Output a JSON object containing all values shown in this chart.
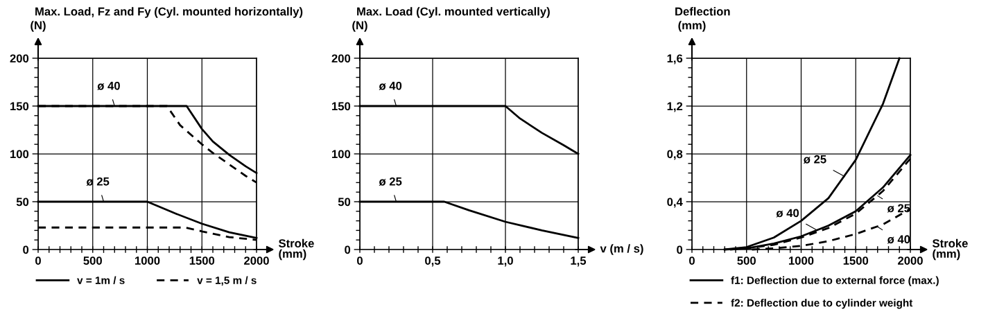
{
  "chart_data": [
    {
      "type": "line",
      "title": "Max. Load, Fz and Fy (Cyl. mounted horizontally)",
      "ylabel": "(N)",
      "xlabel": "Stroke\n(mm)",
      "xlim": [
        0,
        2000
      ],
      "ylim": [
        0,
        200
      ],
      "xticks": [
        0,
        {
          "value": 100,
          "label": null
        },
        {
          "value": 200,
          "label": null
        },
        {
          "value": 300,
          "label": null
        },
        {
          "value": 400,
          "label": null
        },
        500,
        {
          "value": 600,
          "label": null
        },
        {
          "value": 700,
          "label": null
        },
        {
          "value": 800,
          "label": null
        },
        {
          "value": 900,
          "label": null
        },
        1000,
        {
          "value": 1100,
          "label": null
        },
        {
          "value": 1200,
          "label": null
        },
        {
          "value": 1300,
          "label": null
        },
        {
          "value": 1400,
          "label": null
        },
        1500,
        {
          "value": 1600,
          "label": null
        },
        {
          "value": 1700,
          "label": null
        },
        {
          "value": 1800,
          "label": null
        },
        {
          "value": 1900,
          "label": null
        },
        2000
      ],
      "yticks": [
        0,
        {
          "value": 10,
          "label": null
        },
        {
          "value": 20,
          "label": null
        },
        {
          "value": 30,
          "label": null
        },
        {
          "value": 40,
          "label": null
        },
        50,
        {
          "value": 60,
          "label": null
        },
        {
          "value": 70,
          "label": null
        },
        {
          "value": 80,
          "label": null
        },
        {
          "value": 90,
          "label": null
        },
        100,
        {
          "value": 110,
          "label": null
        },
        {
          "value": 120,
          "label": null
        },
        {
          "value": 130,
          "label": null
        },
        {
          "value": 140,
          "label": null
        },
        150,
        {
          "value": 160,
          "label": null
        },
        {
          "value": 170,
          "label": null
        },
        {
          "value": 180,
          "label": null
        },
        {
          "value": 190,
          "label": null
        },
        200
      ],
      "grid": true,
      "legend": "bottom",
      "series": [
        {
          "name": "v = 1m / s",
          "color": "#000000",
          "line_style": "solid",
          "x": [
            0,
            1360,
            1500,
            1600,
            1750,
            1900,
            2000
          ],
          "values": [
            150,
            150,
            126,
            113,
            99,
            87,
            80
          ]
        },
        {
          "name": "v = 1,5 m / s",
          "color": "#000000",
          "line_style": "dashed",
          "x": [
            0,
            1180,
            1300,
            1500,
            1600,
            1750,
            1900,
            2000
          ],
          "values": [
            150,
            150,
            130,
            110,
            101,
            89,
            77,
            70
          ]
        },
        {
          "color": "#000000",
          "line_style": "solid",
          "x": [
            0,
            1000,
            1250,
            1500,
            1750,
            2000
          ],
          "values": [
            50,
            50,
            38,
            27,
            18,
            12
          ]
        },
        {
          "color": "#000000",
          "line_style": "dashed",
          "x": [
            0,
            1350,
            1500,
            1750,
            2000
          ],
          "values": [
            23,
            23,
            19,
            13,
            10
          ]
        }
      ],
      "annotations": [
        {
          "text": "ø 40",
          "x": 700,
          "y": 150
        },
        {
          "text": "ø 25",
          "x": 600,
          "y": 50
        }
      ]
    },
    {
      "type": "line",
      "title": "Max. Load (Cyl. mounted vertically)",
      "ylabel": "(N)",
      "xlabel": "v (m / s)",
      "xlim": [
        0,
        1.5
      ],
      "ylim": [
        0,
        200
      ],
      "xticks": [
        0,
        {
          "value": 0.1,
          "label": null
        },
        {
          "value": 0.2,
          "label": null
        },
        {
          "value": 0.3,
          "label": null
        },
        {
          "value": 0.4,
          "label": null
        },
        {
          "value": 0.5,
          "label": "0,5"
        },
        {
          "value": 0.6,
          "label": null
        },
        {
          "value": 0.7,
          "label": null
        },
        {
          "value": 0.8,
          "label": null
        },
        {
          "value": 0.9,
          "label": null
        },
        {
          "value": 1.0,
          "label": "1,0"
        },
        {
          "value": 1.1,
          "label": null
        },
        {
          "value": 1.2,
          "label": null
        },
        {
          "value": 1.3,
          "label": null
        },
        {
          "value": 1.4,
          "label": null
        },
        {
          "value": 1.5,
          "label": "1,5"
        }
      ],
      "yticks": [
        0,
        {
          "value": 10,
          "label": null
        },
        {
          "value": 20,
          "label": null
        },
        {
          "value": 30,
          "label": null
        },
        {
          "value": 40,
          "label": null
        },
        50,
        {
          "value": 60,
          "label": null
        },
        {
          "value": 70,
          "label": null
        },
        {
          "value": 80,
          "label": null
        },
        {
          "value": 90,
          "label": null
        },
        100,
        {
          "value": 110,
          "label": null
        },
        {
          "value": 120,
          "label": null
        },
        {
          "value": 130,
          "label": null
        },
        {
          "value": 140,
          "label": null
        },
        150,
        {
          "value": 160,
          "label": null
        },
        {
          "value": 170,
          "label": null
        },
        {
          "value": 180,
          "label": null
        },
        {
          "value": 190,
          "label": null
        },
        200
      ],
      "grid": true,
      "series": [
        {
          "color": "#000000",
          "line_style": "solid",
          "x": [
            0,
            1.0,
            1.1,
            1.25,
            1.4,
            1.5
          ],
          "values": [
            150,
            150,
            137,
            122,
            109,
            100
          ]
        },
        {
          "color": "#000000",
          "line_style": "solid",
          "x": [
            0,
            0.58,
            0.75,
            1.0,
            1.25,
            1.5
          ],
          "values": [
            50,
            50,
            41,
            29,
            20,
            12
          ]
        }
      ],
      "annotations": [
        {
          "text": "ø 40",
          "x": 0.25,
          "y": 150
        },
        {
          "text": "ø 25",
          "x": 0.25,
          "y": 50
        }
      ]
    },
    {
      "type": "line",
      "title": "Deflection",
      "ylabel": "(mm)",
      "xlabel": "Stroke\n(mm)",
      "xlim": [
        0,
        2000
      ],
      "ylim": [
        0,
        1.6
      ],
      "xticks": [
        0,
        {
          "value": 100,
          "label": null
        },
        {
          "value": 200,
          "label": null
        },
        {
          "value": 300,
          "label": null
        },
        {
          "value": 400,
          "label": null
        },
        500,
        {
          "value": 600,
          "label": null
        },
        {
          "value": 700,
          "label": null
        },
        {
          "value": 800,
          "label": null
        },
        {
          "value": 900,
          "label": null
        },
        1000,
        {
          "value": 1100,
          "label": null
        },
        {
          "value": 1200,
          "label": null
        },
        {
          "value": 1300,
          "label": null
        },
        {
          "value": 1400,
          "label": null
        },
        1500,
        {
          "value": 1600,
          "label": null
        },
        {
          "value": 1700,
          "label": null
        },
        {
          "value": 1800,
          "label": null
        },
        {
          "value": 1900,
          "label": null
        },
        2000
      ],
      "yticks": [
        0,
        {
          "value": 0.08,
          "label": null
        },
        {
          "value": 0.16,
          "label": null
        },
        {
          "value": 0.24,
          "label": null
        },
        {
          "value": 0.32,
          "label": null
        },
        {
          "value": 0.4,
          "label": "0,4"
        },
        {
          "value": 0.48,
          "label": null
        },
        {
          "value": 0.56,
          "label": null
        },
        {
          "value": 0.64,
          "label": null
        },
        {
          "value": 0.72,
          "label": null
        },
        {
          "value": 0.8,
          "label": "0,8"
        },
        {
          "value": 0.88,
          "label": null
        },
        {
          "value": 0.96,
          "label": null
        },
        {
          "value": 1.04,
          "label": null
        },
        {
          "value": 1.12,
          "label": null
        },
        {
          "value": 1.2,
          "label": "1,2"
        },
        {
          "value": 1.28,
          "label": null
        },
        {
          "value": 1.36,
          "label": null
        },
        {
          "value": 1.44,
          "label": null
        },
        {
          "value": 1.52,
          "label": null
        },
        {
          "value": 1.6,
          "label": "1,6"
        }
      ],
      "grid": true,
      "legend": "bottom",
      "series": [
        {
          "name": "f1: Deflection due to external force (max.)",
          "color": "#000000",
          "line_style": "solid",
          "x": [
            300,
            500,
            750,
            1000,
            1250,
            1500,
            1750,
            1900
          ],
          "values": [
            0,
            0.02,
            0.1,
            0.24,
            0.43,
            0.75,
            1.22,
            1.6
          ]
        },
        {
          "color": "#000000",
          "line_style": "solid",
          "x": [
            300,
            500,
            750,
            1000,
            1250,
            1500,
            1750,
            2000
          ],
          "values": [
            0,
            0.01,
            0.05,
            0.11,
            0.2,
            0.32,
            0.52,
            0.79
          ]
        },
        {
          "name": "f2: Deflection due to cylinder weight",
          "color": "#000000",
          "line_style": "dashed",
          "x": [
            350,
            500,
            750,
            1000,
            1250,
            1500,
            1750,
            2000
          ],
          "values": [
            0,
            0.01,
            0.04,
            0.1,
            0.18,
            0.3,
            0.49,
            0.76
          ]
        },
        {
          "color": "#000000",
          "line_style": "dashed",
          "x": [
            550,
            750,
            1000,
            1250,
            1500,
            1750,
            2000
          ],
          "values": [
            0,
            0.01,
            0.03,
            0.07,
            0.13,
            0.21,
            0.34
          ]
        }
      ],
      "annotations": [
        {
          "text": "ø 25",
          "x": 1400,
          "y": 0.61
        },
        {
          "text": "ø 40",
          "x": 1150,
          "y": 0.16
        },
        {
          "text": "ø 25",
          "x": 1700,
          "y": 0.45
        },
        {
          "text": "ø 40",
          "x": 1700,
          "y": 0.19
        }
      ]
    }
  ]
}
